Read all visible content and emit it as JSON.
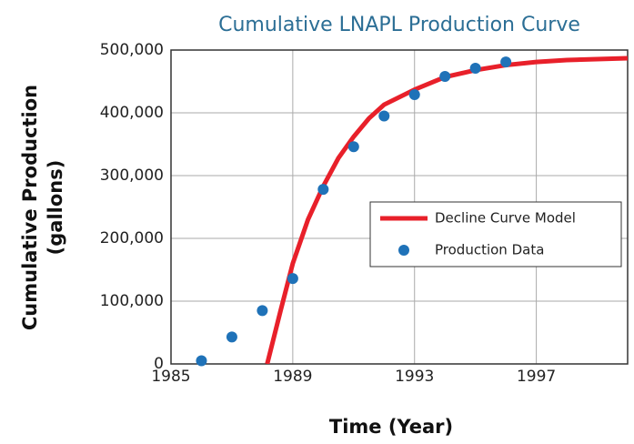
{
  "chart_data": {
    "type": "line",
    "title": "Cumulative LNAPL Production Curve",
    "x_label": "Time (Year)",
    "y_label": [
      "Cumulative Production",
      "(gallons)"
    ],
    "xlim": [
      1985,
      2000
    ],
    "xticks": [
      1985,
      1989,
      1993,
      1997
    ],
    "ylim": [
      0,
      500000
    ],
    "yticks": [
      {
        "value": 0,
        "label": "0"
      },
      {
        "value": 100000,
        "label": "100,000"
      },
      {
        "value": 200000,
        "label": "200,000"
      },
      {
        "value": 300000,
        "label": "300,000"
      },
      {
        "value": 400000,
        "label": "400,000"
      },
      {
        "value": 500000,
        "label": "500,000"
      }
    ],
    "grid": true,
    "series": [
      {
        "name": "Decline Curve Model",
        "type": "line",
        "color": "#e8202a",
        "x": [
          1988.16,
          1988.6,
          1989,
          1989.5,
          1990,
          1990.5,
          1991,
          1991.5,
          1992,
          1993,
          1994,
          1995,
          1996,
          1997,
          1998,
          2000
        ],
        "values": [
          0,
          85000,
          160000,
          230000,
          283000,
          328000,
          362000,
          391000,
          413000,
          437000,
          457000,
          468000,
          476000,
          481000,
          484000,
          487000
        ]
      },
      {
        "name": "Production Data",
        "type": "scatter",
        "color": "#1f72b8",
        "x": [
          1986,
          1987,
          1988,
          1989,
          1990,
          1991,
          1992,
          1993,
          1994,
          1995,
          1996
        ],
        "values": [
          5000,
          43000,
          85000,
          136000,
          278000,
          346000,
          395000,
          429000,
          458000,
          471000,
          481000
        ]
      }
    ]
  }
}
